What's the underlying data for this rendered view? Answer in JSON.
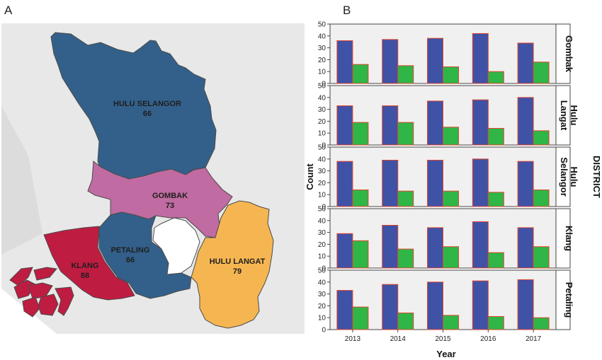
{
  "panel_a": {
    "label": "A",
    "colors": {
      "background": "#e8e8e8",
      "hulu_selangor": "#33608a",
      "gombak": "#c06ba1",
      "petaling": "#33608a",
      "klang": "#bf1c42",
      "hulu_langat": "#f5b652",
      "outline": "#4a4a4a"
    },
    "regions": [
      {
        "key": "hulu_selangor",
        "name": "HULU SELANGOR",
        "value": "66"
      },
      {
        "key": "gombak",
        "name": "GOMBAK",
        "value": "73"
      },
      {
        "key": "petaling",
        "name": "PETALING",
        "value": "66"
      },
      {
        "key": "klang",
        "name": "KLANG",
        "value": "88"
      },
      {
        "key": "hulu_langat",
        "name": "HULU LANGAT",
        "value": "79"
      }
    ]
  },
  "panel_b": {
    "label": "B"
  },
  "chart_data": {
    "type": "bar",
    "facet_title": "DISTRICT",
    "xlabel": "Year",
    "ylabel": "Count",
    "categories": [
      "2013",
      "2014",
      "2015",
      "2016",
      "2017"
    ],
    "ylim": [
      0,
      50
    ],
    "yticks": [
      0,
      10,
      20,
      30,
      40,
      50
    ],
    "grid": false,
    "colors": {
      "series_1": "#3f52a6",
      "series_2": "#2fb646",
      "bar_edge": "#e0452f",
      "panel_bg": "#f0f0f0"
    },
    "panels": [
      {
        "name": "Gombak",
        "series": [
          {
            "values": [
              36,
              37,
              38,
              42,
              34
            ]
          },
          {
            "values": [
              16,
              15,
              14,
              10,
              18
            ]
          }
        ]
      },
      {
        "name": "Hulu Langat",
        "series": [
          {
            "values": [
              33,
              33,
              37,
              38,
              40
            ]
          },
          {
            "values": [
              19,
              19,
              15,
              14,
              12
            ]
          }
        ]
      },
      {
        "name": "Hulu Selangor",
        "series": [
          {
            "values": [
              38,
              39,
              39,
              40,
              38
            ]
          },
          {
            "values": [
              14,
              13,
              13,
              12,
              14
            ]
          }
        ]
      },
      {
        "name": "Klang",
        "series": [
          {
            "values": [
              29,
              36,
              34,
              39,
              34
            ]
          },
          {
            "values": [
              23,
              16,
              18,
              13,
              18
            ]
          }
        ]
      },
      {
        "name": "Petaling",
        "series": [
          {
            "values": [
              33,
              38,
              40,
              41,
              42
            ]
          },
          {
            "values": [
              19,
              14,
              12,
              11,
              10
            ]
          }
        ]
      }
    ]
  }
}
